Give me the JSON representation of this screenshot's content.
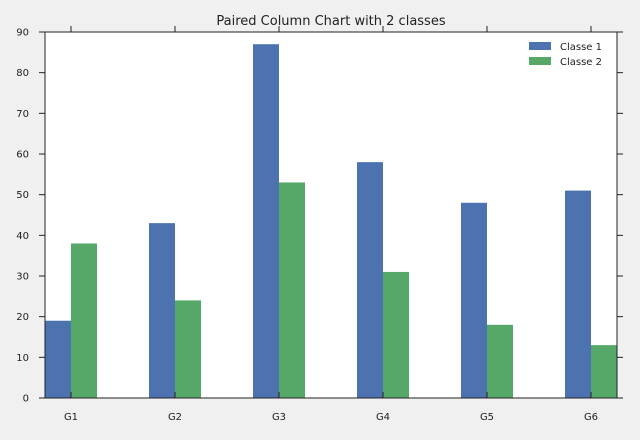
{
  "chart_data": {
    "type": "bar",
    "title": "Paired Column Chart with 2 classes",
    "xlabel": "",
    "ylabel": "",
    "categories": [
      "G1",
      "G2",
      "G3",
      "G4",
      "G5",
      "G6"
    ],
    "series": [
      {
        "name": "Classe 1",
        "color": "#4c72b0",
        "values": [
          19,
          43,
          87,
          58,
          48,
          51
        ]
      },
      {
        "name": "Classe 2",
        "color": "#55a868",
        "values": [
          38,
          24,
          53,
          31,
          18,
          13
        ]
      }
    ],
    "ylim": [
      0,
      90
    ],
    "yticks": [
      0,
      10,
      20,
      30,
      40,
      50,
      60,
      70,
      80,
      90
    ],
    "grid": false,
    "legend_position": "top-right",
    "plot_background": "#ffffff",
    "figure_background": "#f0f0f0"
  }
}
